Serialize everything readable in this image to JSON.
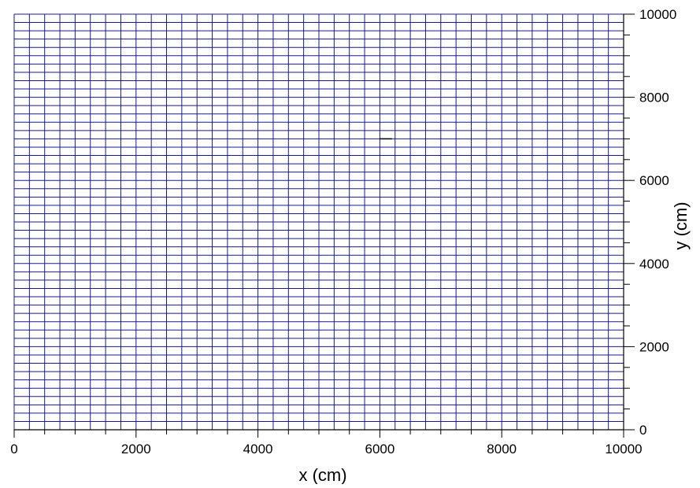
{
  "chart_data": {
    "type": "heatmap",
    "title": "",
    "xlabel": "x (cm)",
    "ylabel": "y (cm)",
    "xlim": [
      0,
      10000
    ],
    "ylim": [
      0,
      10000
    ],
    "x_ticks": [
      "0",
      "2000",
      "4000",
      "6000",
      "8000",
      "10000"
    ],
    "y_ticks": [
      "0",
      "2000",
      "4000",
      "6000",
      "8000",
      "10000"
    ],
    "x_minor_step": 500,
    "y_minor_step": 500,
    "grid": true,
    "grid_x_step": 250,
    "grid_y_step": 200,
    "grid_color": "#1a1a8c",
    "marker_segment": {
      "x_from": 6000,
      "x_to": 6200,
      "y": 7000
    },
    "y_axis_position": "right",
    "x_axis_position": "bottom"
  }
}
